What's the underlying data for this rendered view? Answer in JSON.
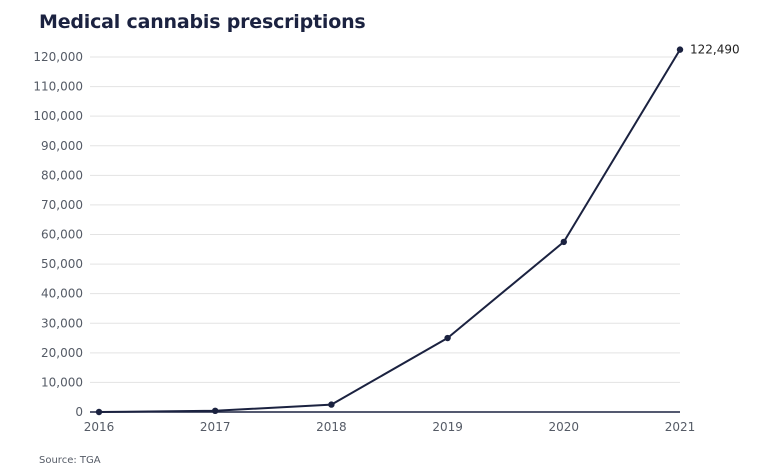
{
  "title": "Medical cannabis prescriptions",
  "source": "Source: TGA",
  "colors": {
    "line": "#1b2240",
    "grid": "#e3e3e3",
    "axis": "#1b2240",
    "text": "#555b66"
  },
  "chart_data": {
    "type": "line",
    "title": "Medical cannabis prescriptions",
    "xlabel": "",
    "ylabel": "",
    "categories": [
      "2016",
      "2017",
      "2018",
      "2019",
      "2020",
      "2021"
    ],
    "series": [
      {
        "name": "Medical cannabis prescriptions",
        "values": [
          0,
          400,
          2500,
          25000,
          57500,
          122490
        ]
      }
    ],
    "ylim": [
      0,
      120000
    ],
    "yticks": [
      0,
      10000,
      20000,
      30000,
      40000,
      50000,
      60000,
      70000,
      80000,
      90000,
      100000,
      110000,
      120000
    ],
    "ytick_labels": [
      "0",
      "10,000",
      "20,000",
      "30,000",
      "40,000",
      "50,000",
      "60,000",
      "70,000",
      "80,000",
      "90,000",
      "100,000",
      "110,000",
      "120,000"
    ],
    "grid": true,
    "annotations": [
      {
        "category": "2021",
        "value": 122490,
        "text": "122,490"
      }
    ]
  }
}
